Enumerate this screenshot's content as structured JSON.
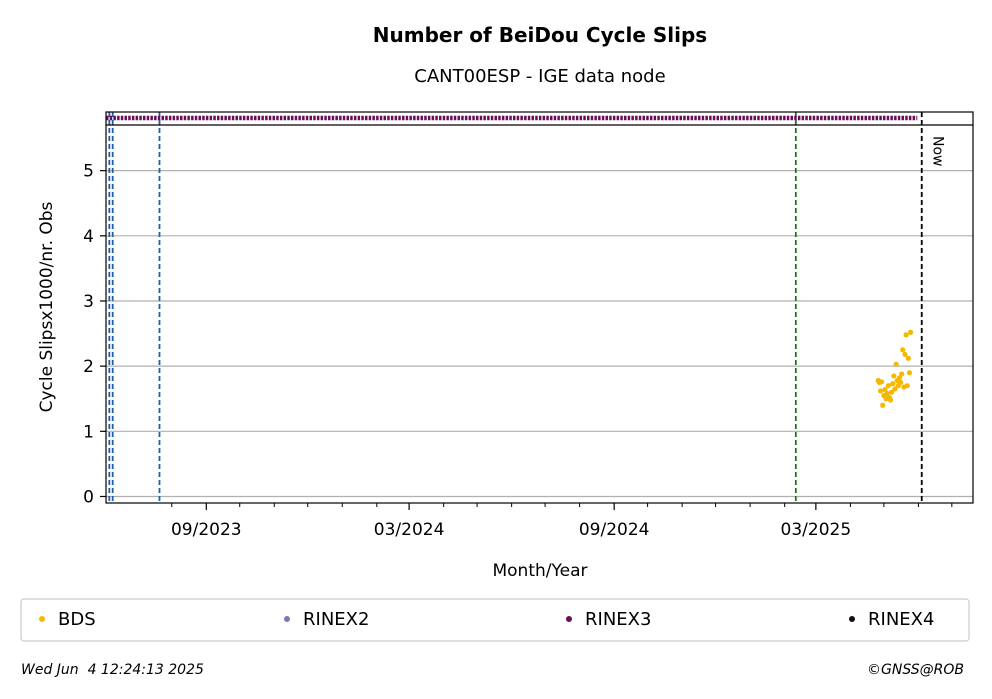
{
  "chart_data": {
    "type": "scatter",
    "title": "Number of BeiDou Cycle Slips",
    "subtitle": "CANT00ESP - IGE data node",
    "xlabel": "Month/Year",
    "ylabel": "Cycle Slipsx1000/nr. Obs",
    "x_tick_labels": [
      "09/2023",
      "03/2024",
      "09/2024",
      "03/2025"
    ],
    "x_ticks": [
      "2023-09-01",
      "2024-03-01",
      "2024-09-01",
      "2025-03-01"
    ],
    "x_minor_ticks": [
      "2023-08-01",
      "2023-10-01",
      "2023-11-01",
      "2023-12-01",
      "2024-01-01",
      "2024-02-01",
      "2024-04-01",
      "2024-05-01",
      "2024-06-01",
      "2024-07-01",
      "2024-08-01",
      "2024-10-01",
      "2024-11-01",
      "2024-12-01",
      "2025-01-01",
      "2025-02-01",
      "2025-04-01",
      "2025-05-01",
      "2025-06-01",
      "2025-07-01"
    ],
    "xlim": [
      "2023-06-03",
      "2025-07-20"
    ],
    "ylim": [
      -0.1,
      5.9
    ],
    "y_ticks": [
      0,
      1,
      2,
      3,
      4,
      5
    ],
    "grid": "horizontal",
    "now_label": "Now",
    "now_date": "2025-06-04",
    "vertical_lines": [
      {
        "date": "2023-06-06",
        "color": "#1f5fa8",
        "style": "dashed"
      },
      {
        "date": "2023-06-09",
        "color": "#1f5fa8",
        "style": "dashed"
      },
      {
        "date": "2023-07-21",
        "color": "#1f5fa8",
        "style": "dashed"
      },
      {
        "date": "2025-02-11",
        "color": "#1a7a1a",
        "style": "dashed"
      },
      {
        "date": "2025-06-04",
        "color": "#000000",
        "style": "dashed"
      }
    ],
    "rinex_strip": {
      "series": "RINEX3",
      "start": "2023-06-03",
      "end": "2025-05-31"
    },
    "series": [
      {
        "name": "BDS",
        "color": "#f5b800",
        "points": [
          [
            "2025-04-26",
            1.78
          ],
          [
            "2025-04-27",
            1.75
          ],
          [
            "2025-04-28",
            1.62
          ],
          [
            "2025-04-29",
            1.76
          ],
          [
            "2025-04-30",
            1.4
          ],
          [
            "2025-05-01",
            1.55
          ],
          [
            "2025-05-02",
            1.64
          ],
          [
            "2025-05-03",
            1.5
          ],
          [
            "2025-05-04",
            1.58
          ],
          [
            "2025-05-05",
            1.7
          ],
          [
            "2025-05-06",
            1.52
          ],
          [
            "2025-05-07",
            1.48
          ],
          [
            "2025-05-08",
            1.6
          ],
          [
            "2025-05-09",
            1.73
          ],
          [
            "2025-05-10",
            1.85
          ],
          [
            "2025-05-11",
            1.65
          ],
          [
            "2025-05-12",
            2.03
          ],
          [
            "2025-05-13",
            1.78
          ],
          [
            "2025-05-14",
            1.7
          ],
          [
            "2025-05-15",
            1.82
          ],
          [
            "2025-05-16",
            1.75
          ],
          [
            "2025-05-17",
            1.88
          ],
          [
            "2025-05-18",
            2.25
          ],
          [
            "2025-05-19",
            1.68
          ],
          [
            "2025-05-20",
            2.18
          ],
          [
            "2025-05-21",
            2.48
          ],
          [
            "2025-05-22",
            1.7
          ],
          [
            "2025-05-23",
            2.12
          ],
          [
            "2025-05-24",
            1.9
          ],
          [
            "2025-05-25",
            2.52
          ]
        ]
      },
      {
        "name": "RINEX2",
        "color": "#7b78b8"
      },
      {
        "name": "RINEX3",
        "color": "#6a0d5a"
      },
      {
        "name": "RINEX4",
        "color": "#1a0a1a"
      }
    ]
  },
  "footer": {
    "timestamp": "Wed Jun  4 12:24:13 2025",
    "credit": "©GNSS@ROB"
  }
}
